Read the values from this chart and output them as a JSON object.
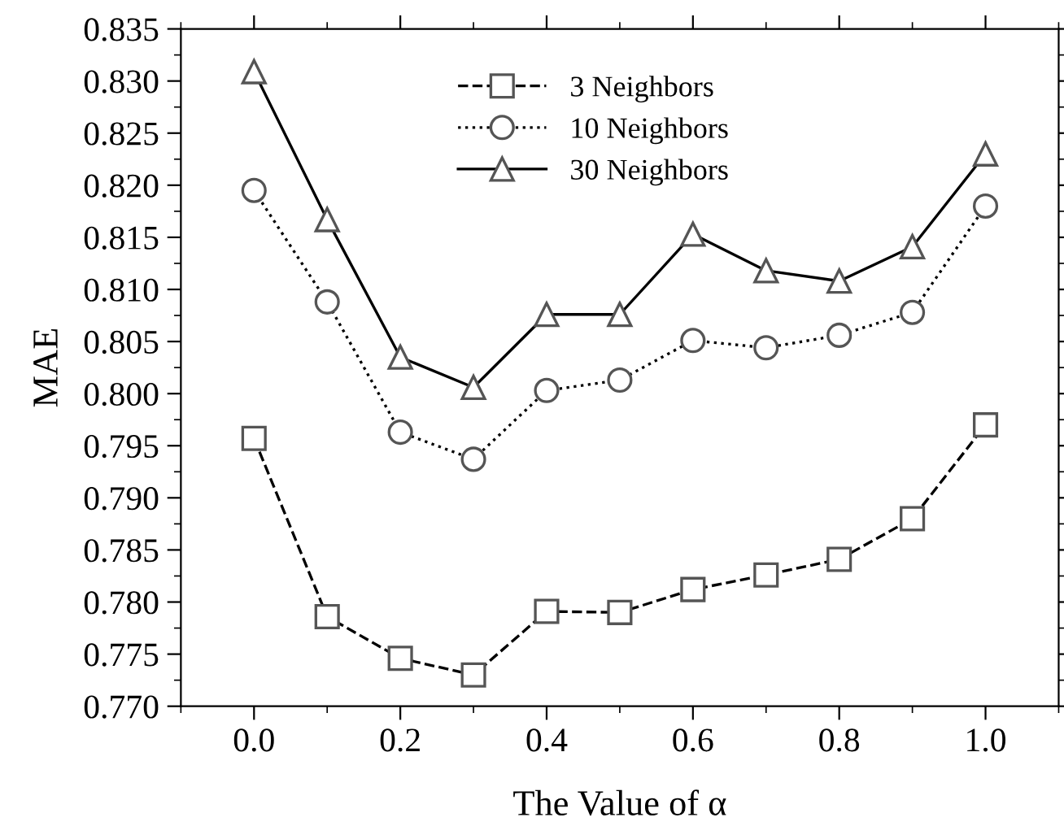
{
  "chart_data": {
    "type": "line",
    "xlabel": "The Value of α",
    "ylabel": "MAE",
    "x": [
      0.0,
      0.1,
      0.2,
      0.3,
      0.4,
      0.5,
      0.6,
      0.7,
      0.8,
      0.9,
      1.0
    ],
    "xlim": [
      -0.1,
      1.1
    ],
    "xticks": [
      {
        "value": 0.0,
        "label": "0.0"
      },
      {
        "value": 0.2,
        "label": "0.2"
      },
      {
        "value": 0.4,
        "label": "0.4"
      },
      {
        "value": 0.6,
        "label": "0.6"
      },
      {
        "value": 0.8,
        "label": "0.8"
      },
      {
        "value": 1.0,
        "label": "1.0"
      }
    ],
    "ylim": [
      0.77,
      0.835
    ],
    "yticks": [
      {
        "value": 0.77,
        "label": "0.770"
      },
      {
        "value": 0.775,
        "label": "0.775"
      },
      {
        "value": 0.78,
        "label": "0.780"
      },
      {
        "value": 0.785,
        "label": "0.785"
      },
      {
        "value": 0.79,
        "label": "0.790"
      },
      {
        "value": 0.795,
        "label": "0.795"
      },
      {
        "value": 0.8,
        "label": "0.800"
      },
      {
        "value": 0.805,
        "label": "0.805"
      },
      {
        "value": 0.81,
        "label": "0.810"
      },
      {
        "value": 0.815,
        "label": "0.815"
      },
      {
        "value": 0.82,
        "label": "0.820"
      },
      {
        "value": 0.825,
        "label": "0.825"
      },
      {
        "value": 0.83,
        "label": "0.830"
      },
      {
        "value": 0.835,
        "label": "0.835"
      }
    ],
    "grid": false,
    "legend": "top center",
    "series": [
      {
        "name": "3 Neighbors",
        "color": "#000000",
        "marker": "square",
        "line_style": "dashed",
        "values": [
          0.7957,
          0.7786,
          0.7746,
          0.773,
          0.7791,
          0.779,
          0.7812,
          0.7826,
          0.7841,
          0.788,
          0.797
        ]
      },
      {
        "name": "10 Neighbors",
        "color": "#000000",
        "marker": "circle",
        "line_style": "dotted",
        "values": [
          0.8195,
          0.8088,
          0.7963,
          0.7937,
          0.8003,
          0.8013,
          0.8051,
          0.8044,
          0.8056,
          0.8078,
          0.818
        ]
      },
      {
        "name": "30 Neighbors",
        "color": "#000000",
        "marker": "triangle",
        "line_style": "solid",
        "values": [
          0.8309,
          0.8167,
          0.8035,
          0.8006,
          0.8076,
          0.8076,
          0.8153,
          0.8118,
          0.8108,
          0.8141,
          0.823
        ]
      }
    ]
  }
}
